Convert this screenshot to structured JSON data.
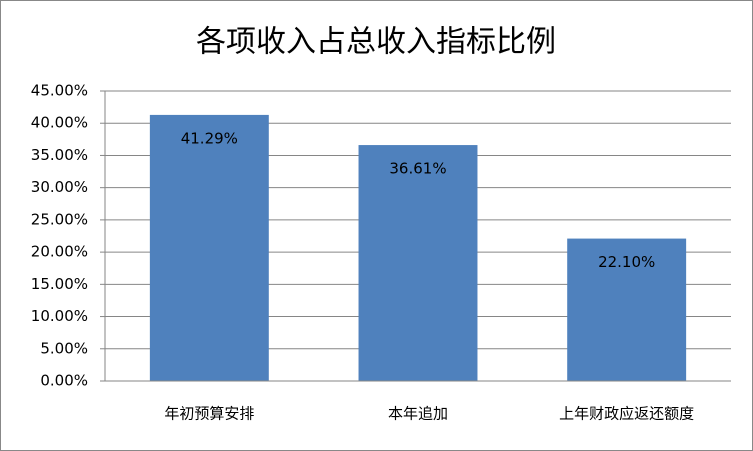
{
  "chart_data": {
    "type": "bar",
    "title": "各项收入占总收入指标比例",
    "categories": [
      "年初预算安排",
      "本年追加",
      "上年财政应返还额度"
    ],
    "values": [
      41.29,
      36.61,
      22.1
    ],
    "value_labels": [
      "41.29%",
      "36.61%",
      "22.10%"
    ],
    "color": "#4f81bd",
    "ylim": [
      0,
      45
    ],
    "yticks": [
      {
        "value": 0,
        "label": "0.00%"
      },
      {
        "value": 5,
        "label": "5.00%"
      },
      {
        "value": 10,
        "label": "10.00%"
      },
      {
        "value": 15,
        "label": "15.00%"
      },
      {
        "value": 20,
        "label": "20.00%"
      },
      {
        "value": 25,
        "label": "25.00%"
      },
      {
        "value": 30,
        "label": "30.00%"
      },
      {
        "value": 35,
        "label": "35.00%"
      },
      {
        "value": 40,
        "label": "40.00%"
      },
      {
        "value": 45,
        "label": "45.00%"
      }
    ],
    "grid": true
  }
}
